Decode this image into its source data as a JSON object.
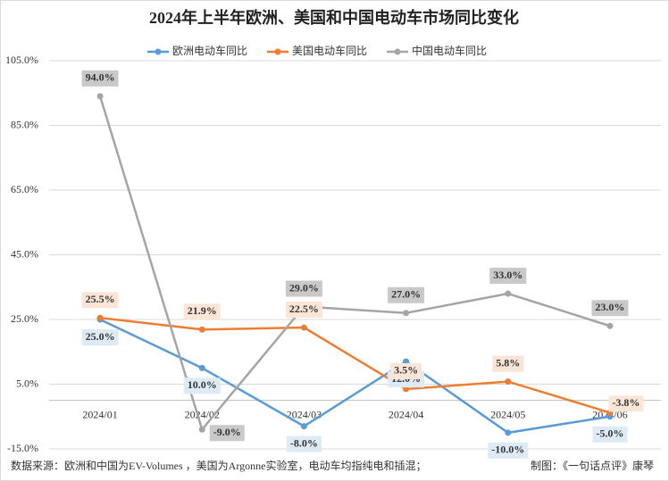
{
  "chart_data": {
    "type": "line",
    "title": "2024年上半年欧洲、美国和中国电动车市场同比变化",
    "categories": [
      "2024/01",
      "2024/02",
      "2024/03",
      "2024/04",
      "2024/05",
      "2024/06"
    ],
    "series": [
      {
        "name": "欧洲电动车同比",
        "color": "#5b9bd5",
        "values": [
          25.0,
          10.0,
          -8.0,
          12.0,
          -10.0,
          -5.0
        ],
        "value_labels": [
          "25.0%",
          "10.0%",
          "-8.0%",
          "12.0%",
          "-10.0%",
          "-5.0%"
        ]
      },
      {
        "name": "美国电动车同比",
        "color": "#ed7d31",
        "values": [
          25.5,
          21.9,
          22.5,
          3.5,
          5.8,
          -3.8
        ],
        "value_labels": [
          "25.5%",
          "21.9%",
          "22.5%",
          "3.5%",
          "5.8%",
          "-3.8%"
        ]
      },
      {
        "name": "中国电动车同比",
        "color": "#a5a5a5",
        "values": [
          94.0,
          -9.0,
          29.0,
          27.0,
          33.0,
          23.0
        ],
        "value_labels": [
          "94.0%",
          "-9.0%",
          "29.0%",
          "27.0%",
          "33.0%",
          "23.0%"
        ]
      }
    ],
    "ylim": [
      -15,
      105
    ],
    "yticks": [
      {
        "value": -15,
        "label": "-15.0%"
      },
      {
        "value": 5,
        "label": "5.0%"
      },
      {
        "value": 25,
        "label": "25.0%"
      },
      {
        "value": 45,
        "label": "45.0%"
      },
      {
        "value": 65,
        "label": "65.0%"
      },
      {
        "value": 85,
        "label": "85.0%"
      },
      {
        "value": 105,
        "label": "105.0%"
      }
    ],
    "grid": true,
    "legend": "top",
    "footnote": "数据来源：欧洲和中国为EV-Volumes ，美国为Argonne实验室，电动车均指纯电和插混；",
    "credit": "制图：《一句话点评》康琴"
  }
}
